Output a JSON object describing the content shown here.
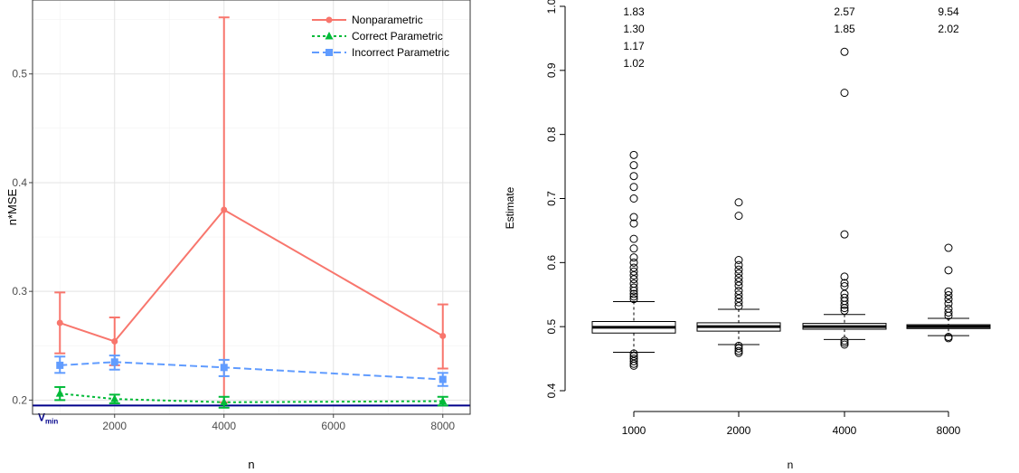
{
  "chart_data": [
    {
      "type": "line",
      "xlabel": "n",
      "ylabel": "n*MSE",
      "xlim": [
        500,
        8500
      ],
      "ylim": [
        0.187,
        0.568
      ],
      "x_ticks": [
        2000,
        4000,
        6000,
        8000
      ],
      "y_ticks": [
        0.2,
        0.3,
        0.4,
        0.5
      ],
      "grid": true,
      "legend": "top-right",
      "series": [
        {
          "name": "Nonparametric",
          "color": "#F8766D",
          "marker": "circle",
          "line": "solid",
          "x": [
            1000,
            2000,
            4000,
            8000
          ],
          "y": [
            0.271,
            0.254,
            0.375,
            0.259
          ],
          "lower": [
            0.243,
            0.232,
            0.198,
            0.229
          ],
          "upper": [
            0.299,
            0.276,
            0.552,
            0.288
          ]
        },
        {
          "name": "Correct Parametric",
          "color": "#00BA38",
          "marker": "triangle",
          "line": "dotted",
          "x": [
            1000,
            2000,
            4000,
            8000
          ],
          "y": [
            0.206,
            0.201,
            0.198,
            0.199
          ],
          "lower": [
            0.2,
            0.197,
            0.193,
            0.195
          ],
          "upper": [
            0.212,
            0.205,
            0.203,
            0.203
          ]
        },
        {
          "name": "Incorrect Parametric",
          "color": "#619CFF",
          "marker": "square",
          "line": "dashed",
          "x": [
            1000,
            2000,
            4000,
            8000
          ],
          "y": [
            0.232,
            0.235,
            0.23,
            0.219
          ],
          "lower": [
            0.225,
            0.228,
            0.222,
            0.213
          ],
          "upper": [
            0.24,
            0.241,
            0.237,
            0.225
          ]
        }
      ],
      "reference_line": {
        "y": 0.195,
        "label_main": "V",
        "label_sub": "min",
        "color": "#00008B"
      }
    },
    {
      "type": "box",
      "xlabel": "n",
      "ylabel": "Estimate",
      "ylim": [
        0.43,
        1.0
      ],
      "y_ticks": [
        0.4,
        0.5,
        0.6,
        0.7,
        0.8,
        0.9,
        1.0
      ],
      "y_tick_labels": [
        "0.4",
        "0.5",
        "0.6",
        "0.7",
        "0.8",
        "0.9",
        "1.0"
      ],
      "categories": [
        "1000",
        "2000",
        "4000",
        "8000"
      ],
      "boxes": [
        {
          "q1": 0.49,
          "median": 0.499,
          "q3": 0.508,
          "whisker_low": 0.46,
          "whisker_high": 0.539
        },
        {
          "q1": 0.493,
          "median": 0.5,
          "q3": 0.506,
          "whisker_low": 0.472,
          "whisker_high": 0.527
        },
        {
          "q1": 0.496,
          "median": 0.5,
          "q3": 0.505,
          "whisker_low": 0.48,
          "whisker_high": 0.519
        },
        {
          "q1": 0.497,
          "median": 0.5,
          "q3": 0.503,
          "whisker_low": 0.486,
          "whisker_high": 0.513
        }
      ],
      "outliers": [
        [
          0.768,
          0.752,
          0.735,
          0.718,
          0.7,
          0.671,
          0.661,
          0.637,
          0.622,
          0.608,
          0.6,
          0.592,
          0.586,
          0.58,
          0.574,
          0.567,
          0.561,
          0.556,
          0.551,
          0.547,
          0.543,
          0.458,
          0.454,
          0.45,
          0.446,
          0.442,
          0.439
        ],
        [
          0.694,
          0.673,
          0.604,
          0.596,
          0.589,
          0.583,
          0.576,
          0.57,
          0.564,
          0.556,
          0.55,
          0.544,
          0.538,
          0.532,
          0.47,
          0.466,
          0.462,
          0.459
        ],
        [
          0.929,
          0.865,
          0.644,
          0.578,
          0.568,
          0.563,
          0.551,
          0.545,
          0.54,
          0.534,
          0.529,
          0.525,
          0.478,
          0.475,
          0.472
        ],
        [
          0.623,
          0.588,
          0.555,
          0.549,
          0.543,
          0.536,
          0.528,
          0.522,
          0.517,
          0.484,
          0.482
        ]
      ],
      "off_scale_values": [
        [
          "1.83",
          "1.30",
          "1.17",
          "1.02"
        ],
        [],
        [
          "2.57",
          "1.85"
        ],
        [
          "9.54",
          "2.02"
        ]
      ]
    }
  ]
}
